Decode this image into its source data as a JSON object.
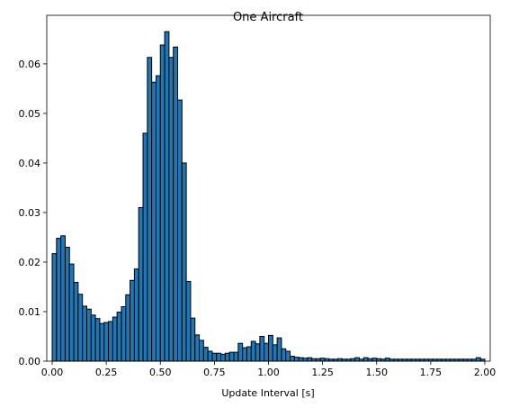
{
  "chart_data": {
    "type": "bar",
    "title": "One Aircraft",
    "xlabel": "Update Interval [s]",
    "ylabel": "",
    "xlim": [
      -0.025,
      2.025
    ],
    "ylim": [
      0,
      0.0698
    ],
    "grid": false,
    "legend": "none",
    "bar_color": "#1f77b4",
    "edge_color": "#000000",
    "bin_width": 0.02,
    "bin_start": 0.0,
    "values": [
      0.0217,
      0.0248,
      0.0253,
      0.023,
      0.0196,
      0.0159,
      0.0135,
      0.0111,
      0.0105,
      0.0093,
      0.0086,
      0.0076,
      0.0078,
      0.008,
      0.0089,
      0.0099,
      0.011,
      0.0134,
      0.0163,
      0.0186,
      0.031,
      0.046,
      0.0613,
      0.0563,
      0.0576,
      0.0638,
      0.0665,
      0.0613,
      0.0634,
      0.0527,
      0.04,
      0.0161,
      0.0087,
      0.0053,
      0.0042,
      0.0028,
      0.002,
      0.0016,
      0.0016,
      0.0014,
      0.0016,
      0.0018,
      0.0018,
      0.0036,
      0.0027,
      0.0029,
      0.004,
      0.0035,
      0.005,
      0.0036,
      0.0052,
      0.0033,
      0.0047,
      0.0025,
      0.002,
      0.001,
      0.0008,
      0.0007,
      0.0006,
      0.0007,
      0.0005,
      0.0005,
      0.0006,
      0.0005,
      0.0004,
      0.0004,
      0.0005,
      0.0004,
      0.0004,
      0.0005,
      0.0007,
      0.0004,
      0.0007,
      0.0005,
      0.0006,
      0.0005,
      0.0004,
      0.0006,
      0.0004,
      0.0004,
      0.0004,
      0.0004,
      0.0004,
      0.0004,
      0.0004,
      0.0004,
      0.0004,
      0.0004,
      0.0004,
      0.0004,
      0.0004,
      0.0004,
      0.0004,
      0.0004,
      0.0004,
      0.0004,
      0.0004,
      0.0004,
      0.0007,
      0.0004
    ],
    "x_ticks": [
      "0.00",
      "0.25",
      "0.50",
      "0.75",
      "1.00",
      "1.25",
      "1.50",
      "1.75",
      "2.00"
    ],
    "x_tick_values": [
      0,
      0.25,
      0.5,
      0.75,
      1.0,
      1.25,
      1.5,
      1.75,
      2.0
    ],
    "y_ticks": [
      "0.00",
      "0.01",
      "0.02",
      "0.03",
      "0.04",
      "0.05",
      "0.06"
    ],
    "y_tick_values": [
      0,
      0.01,
      0.02,
      0.03,
      0.04,
      0.05,
      0.06
    ]
  }
}
